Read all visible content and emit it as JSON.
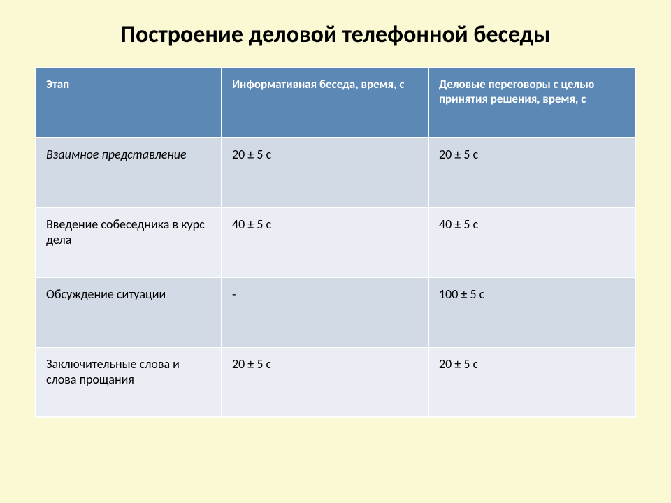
{
  "title": "Построение деловой телефонной беседы",
  "table": {
    "type": "table",
    "header_bg": "#5b88b5",
    "header_fg": "#ffffff",
    "row_odd_bg": "#d2dae6",
    "row_even_bg": "#eaeef4",
    "border_color": "#ffffff",
    "title_fontsize": 34,
    "header_fontsize": 17,
    "cell_fontsize": 18,
    "columns": [
      {
        "label": "Этап",
        "width": "31%"
      },
      {
        "label": "Информативная беседа, время, с",
        "width": "34.5%"
      },
      {
        "label": "Деловые переговоры с целью принятия решения, время, с",
        "width": "34.5%"
      }
    ],
    "rows": [
      {
        "stage": "Взаимное представление",
        "info": "20 ± 5 с",
        "decision": "20 ± 5 с",
        "italic": true
      },
      {
        "stage": "Введение собеседника в курс дела",
        "info": "40 ± 5 с",
        "decision": "40 ± 5 с",
        "italic": false
      },
      {
        "stage": "Обсуждение ситуации",
        "info": "-",
        "decision": "100 ± 5 с",
        "italic": false
      },
      {
        "stage": "Заключительные слова и слова прощания",
        "info": "20 ± 5 с",
        "decision": "20 ± 5 с",
        "italic": false
      }
    ]
  },
  "background_color": "#fbf9d3"
}
